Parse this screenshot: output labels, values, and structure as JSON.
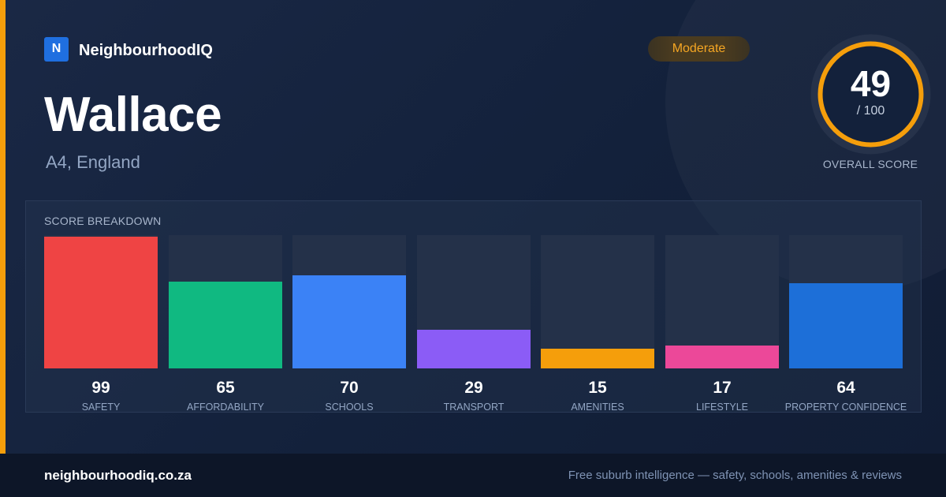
{
  "brand": {
    "logo_letter": "N",
    "name": "NeighbourhoodIQ"
  },
  "suburb": {
    "name": "Wallace",
    "location": "A4, England"
  },
  "rating": {
    "label": "Moderate",
    "color": "#f5a623"
  },
  "overall": {
    "score": "49",
    "max": "/ 100",
    "caption": "OVERALL SCORE",
    "fraction": 0.49,
    "ring_color": "#f59e0b"
  },
  "breakdown": {
    "title": "SCORE BREAKDOWN",
    "categories": [
      {
        "label": "SAFETY",
        "value": "99",
        "score": 99,
        "color": "#ef4444"
      },
      {
        "label": "AFFORDABILITY",
        "value": "65",
        "score": 65,
        "color": "#10b981"
      },
      {
        "label": "SCHOOLS",
        "value": "70",
        "score": 70,
        "color": "#3b82f6"
      },
      {
        "label": "TRANSPORT",
        "value": "29",
        "score": 29,
        "color": "#8b5cf6"
      },
      {
        "label": "AMENITIES",
        "value": "15",
        "score": 15,
        "color": "#f59e0b"
      },
      {
        "label": "LIFESTYLE",
        "value": "17",
        "score": 17,
        "color": "#ec4899"
      },
      {
        "label": "PROPERTY CONFIDENCE",
        "value": "64",
        "score": 64,
        "color": "#1d6fd8"
      }
    ]
  },
  "footer": {
    "domain": "neighbourhoodiq.co.za",
    "tagline": "Free suburb intelligence — safety, schools, amenities & reviews"
  }
}
